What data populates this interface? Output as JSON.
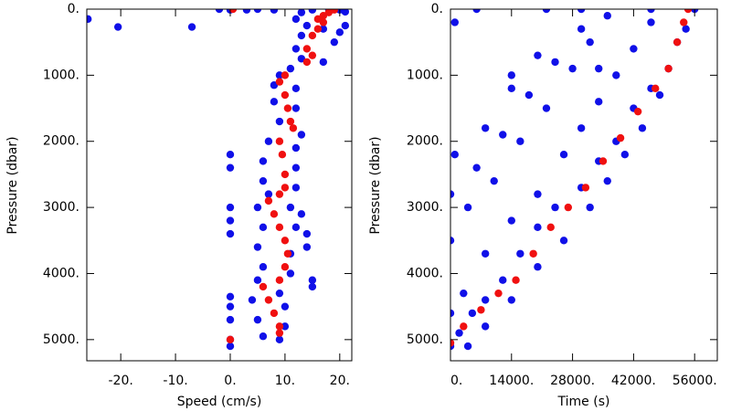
{
  "chart_data": [
    {
      "type": "scatter",
      "xlabel": "Speed (cm/s)",
      "ylabel": "Pressure (dbar)",
      "xlim": [
        -26.2,
        22.2
      ],
      "ylim": [
        5320,
        0
      ],
      "xticks": [
        {
          "value": -20,
          "label": "-20."
        },
        {
          "value": -10,
          "label": "-10."
        },
        {
          "value": 0,
          "label": "0."
        },
        {
          "value": 10,
          "label": "10."
        },
        {
          "value": 20,
          "label": "20."
        }
      ],
      "yticks": [
        {
          "value": 0,
          "label": "0."
        },
        {
          "value": 1000,
          "label": "1000."
        },
        {
          "value": 2000,
          "label": "2000."
        },
        {
          "value": 3000,
          "label": "3000."
        },
        {
          "value": 4000,
          "label": "4000."
        },
        {
          "value": 5000,
          "label": "5000."
        }
      ],
      "series": [
        {
          "color": "#1010e8",
          "x": [
            -26,
            -20.5,
            -7,
            -2,
            5,
            0,
            0,
            0,
            0,
            0,
            0,
            0,
            0,
            0,
            0,
            0,
            3,
            8,
            15,
            20,
            21,
            18,
            13,
            12,
            14,
            13,
            17,
            20,
            21,
            19,
            12,
            13,
            17,
            11,
            9,
            8,
            12,
            8,
            12,
            9,
            13,
            7,
            12,
            6,
            12,
            6,
            12,
            7,
            5,
            11,
            13,
            6,
            12,
            5,
            11,
            6,
            11,
            5,
            9,
            4,
            10,
            5,
            10,
            6,
            9,
            15,
            14,
            14,
            15
          ],
          "values": [
            150,
            270,
            270,
            0,
            0,
            5000,
            5100,
            4700,
            4500,
            3000,
            3200,
            3400,
            2200,
            2400,
            4350,
            10,
            10,
            10,
            10,
            10,
            40,
            0,
            50,
            150,
            250,
            400,
            300,
            350,
            250,
            500,
            600,
            750,
            800,
            900,
            1000,
            1150,
            1200,
            1400,
            1500,
            1700,
            1900,
            2000,
            2100,
            2300,
            2400,
            2600,
            2700,
            2800,
            3000,
            3000,
            3100,
            3300,
            3300,
            3600,
            3700,
            3900,
            4000,
            4100,
            4300,
            4400,
            4500,
            4700,
            4800,
            4950,
            5000,
            4100,
            3600,
            3400,
            4200
          ]
        },
        {
          "color": "#f01010",
          "x": [
            0.5,
            16,
            17,
            18,
            19,
            17,
            16,
            15,
            14,
            15,
            14,
            10,
            9,
            10,
            10.5,
            11,
            11.5,
            9,
            9.5,
            10,
            10,
            9,
            7,
            8,
            9,
            10,
            10.5,
            10,
            9,
            6,
            7,
            8,
            9,
            9,
            0
          ],
          "values": [
            0,
            150,
            100,
            50,
            10,
            200,
            300,
            400,
            600,
            700,
            800,
            1000,
            1100,
            1300,
            1500,
            1700,
            1800,
            2000,
            2200,
            2500,
            2700,
            2800,
            2900,
            3100,
            3300,
            3500,
            3700,
            3900,
            4100,
            4200,
            4400,
            4600,
            4800,
            4900,
            5000
          ]
        }
      ]
    },
    {
      "type": "scatter",
      "xlabel": "Time (s)",
      "ylabel": "Pressure (dbar)",
      "xlim": [
        0,
        61200
      ],
      "ylim": [
        5320,
        0
      ],
      "xticks": [
        {
          "value": 0,
          "label": "0."
        },
        {
          "value": 14000,
          "label": "14000."
        },
        {
          "value": 28000,
          "label": "28000."
        },
        {
          "value": 42000,
          "label": "42000."
        },
        {
          "value": 56000,
          "label": "56000."
        }
      ],
      "yticks": [
        {
          "value": 0,
          "label": "0."
        },
        {
          "value": 1000,
          "label": "1000."
        },
        {
          "value": 2000,
          "label": "2000."
        },
        {
          "value": 3000,
          "label": "3000."
        },
        {
          "value": 4000,
          "label": "4000."
        },
        {
          "value": 5000,
          "label": "5000."
        }
      ],
      "series": [
        {
          "color": "#1010e8",
          "x": [
            0,
            2000,
            5000,
            8000,
            12000,
            16000,
            20000,
            24000,
            30000,
            34000,
            38000,
            42000,
            46000,
            50000,
            52000,
            56000,
            54000,
            48000,
            44000,
            40000,
            36000,
            32000,
            26000,
            20000,
            14000,
            8000,
            4000,
            0,
            3000,
            8000,
            14000,
            20000,
            26000,
            30000,
            34000,
            38000,
            42000,
            46000,
            0,
            4000,
            10000,
            16000,
            22000,
            28000,
            32000,
            36000,
            0,
            6000,
            12000,
            18000,
            24000,
            30000,
            1000,
            8000,
            14000,
            20000,
            6000,
            1000,
            14000,
            22000,
            30000,
            46000,
            34000
          ],
          "values": [
            5100,
            4900,
            4600,
            4400,
            4100,
            3700,
            3300,
            3000,
            2700,
            2300,
            2000,
            1500,
            1200,
            900,
            500,
            0,
            300,
            1300,
            1800,
            2200,
            2600,
            3000,
            3500,
            3900,
            4400,
            4800,
            5100,
            4600,
            4300,
            3700,
            3200,
            2800,
            2200,
            1800,
            1400,
            1000,
            600,
            200,
            3500,
            3000,
            2600,
            2000,
            1500,
            900,
            500,
            100,
            2800,
            2400,
            1900,
            1300,
            800,
            300,
            2200,
            1800,
            1200,
            700,
            0,
            200,
            1000,
            0,
            0,
            0,
            900
          ]
        },
        {
          "color": "#f01010",
          "x": [
            0,
            3000,
            7000,
            11000,
            15000,
            19000,
            23000,
            27000,
            31000,
            35000,
            39000,
            43000,
            47000,
            50000,
            52000,
            53500,
            54500
          ],
          "values": [
            5050,
            4800,
            4550,
            4300,
            4100,
            3700,
            3300,
            3000,
            2700,
            2300,
            1950,
            1550,
            1200,
            900,
            500,
            200,
            0
          ]
        }
      ]
    }
  ]
}
